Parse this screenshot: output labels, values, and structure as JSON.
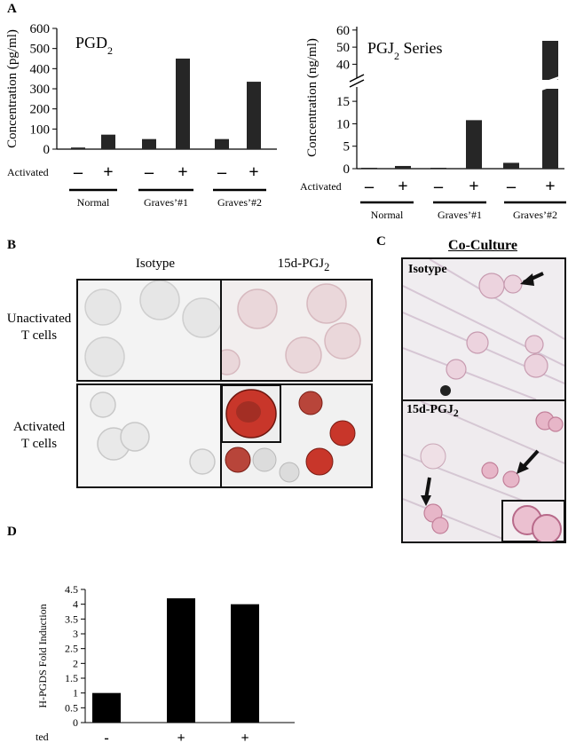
{
  "panels": {
    "A": "A",
    "B": "B",
    "C": "C",
    "D": "D"
  },
  "panelB": {
    "col_isotype": "Isotype",
    "col_15d_prefix": "15d-PGJ",
    "col_15d_sub": "2",
    "row_unactivated_l1": "Unactivated",
    "row_unactivated_l2": "T cells",
    "row_activated_l1": "Activated",
    "row_activated_l2": "T cells"
  },
  "panelC": {
    "title": "Co-Culture",
    "top_label": "Isotype",
    "bottom_label_prefix": "15d-PGJ",
    "bottom_label_sub": "2"
  },
  "colors": {
    "bar": "#262626",
    "stain_red": "#c8362a",
    "pink": "#e9b3c6"
  },
  "chart_data": [
    {
      "id": "pgd2",
      "type": "bar",
      "title_prefix": "PGD",
      "title_sub": "2",
      "ylabel": "Concentration (pg/ml)",
      "ylim": [
        0,
        600
      ],
      "yticks": [
        0,
        100,
        200,
        300,
        400,
        500,
        600
      ],
      "row_label": "Activated",
      "x": [
        "–",
        "+",
        "–",
        "+",
        "–",
        "+"
      ],
      "values": [
        8,
        72,
        50,
        450,
        50,
        335
      ],
      "groups": [
        "Normal",
        "Graves’#1",
        "Graves’#2"
      ]
    },
    {
      "id": "pgj2",
      "type": "bar",
      "title_prefix": "PGJ",
      "title_sub": "2",
      "title_suffix": " Series",
      "ylabel": "Concentration (ng/ml)",
      "ylim_lower": [
        0,
        17
      ],
      "yticks_lower": [
        0,
        5,
        10,
        15
      ],
      "ylim_upper": [
        35,
        62
      ],
      "yticks_upper": [
        40,
        50,
        60
      ],
      "axis_break": true,
      "row_label": "Activated",
      "x": [
        "–",
        "+",
        "–",
        "+",
        "–",
        "+"
      ],
      "values": [
        0.2,
        0.6,
        0.2,
        10.8,
        1.3,
        62
      ],
      "groups": [
        "Normal",
        "Graves’#1",
        "Graves’#2"
      ]
    },
    {
      "id": "hpgds",
      "type": "bar",
      "ylabel": "H-PGDS Fold Induction",
      "ylim": [
        0,
        4.5
      ],
      "yticks": [
        "0",
        "0.5",
        "1",
        "1.5",
        "2",
        "2.5",
        "3",
        "3.5",
        "4",
        "4.5"
      ],
      "row_label": "Activated",
      "x": [
        "-",
        "+",
        "+"
      ],
      "values": [
        1,
        4.2,
        4
      ]
    }
  ]
}
